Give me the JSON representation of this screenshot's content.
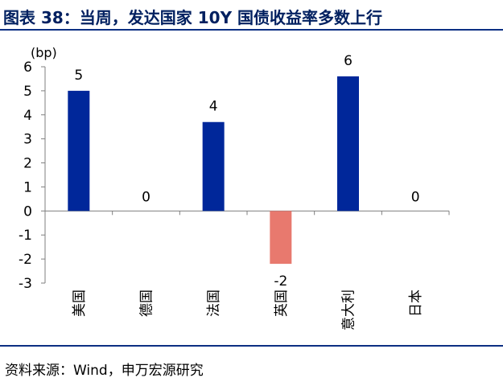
{
  "title": "图表 38：当周，发达国家 10Y 国债收益率多数上行",
  "source": "资料来源：Wind，申万宏源研究",
  "colors": {
    "positive": "#00279a",
    "negative": "#e8796e",
    "rule": "#0c2f83",
    "title": "#002060"
  },
  "chart_data": {
    "type": "bar",
    "unit": "(bp)",
    "categories": [
      "美国",
      "德国",
      "法国",
      "英国",
      "意大利",
      "日本"
    ],
    "values": [
      5,
      0,
      3.7,
      -2.2,
      5.6,
      0
    ],
    "value_labels": [
      "5",
      "0",
      "4",
      "-2",
      "6",
      "0"
    ],
    "ylim": [
      -3,
      6
    ],
    "yticks": [
      6,
      5,
      4,
      3,
      2,
      1,
      0,
      -1,
      -2,
      -3
    ],
    "grid": false,
    "legend": "none"
  }
}
